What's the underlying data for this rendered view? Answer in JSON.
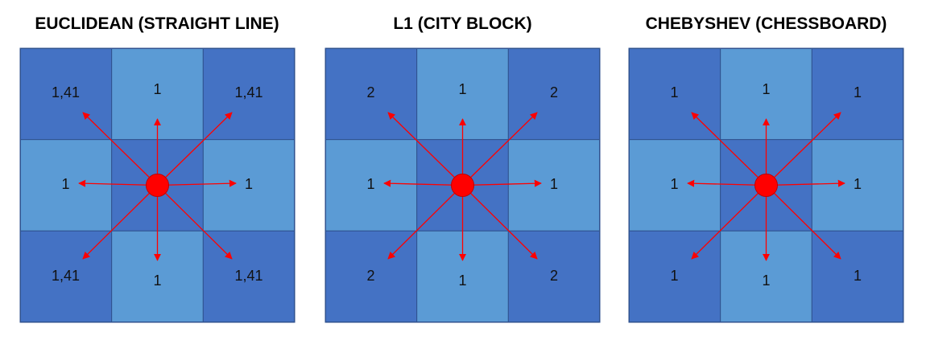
{
  "colors": {
    "dark_cell": "#4472c4",
    "light_cell": "#5b9bd5",
    "cell_border": "#2f528f",
    "arrow": "#ff0000",
    "center_dot": "#ff0000"
  },
  "panels": [
    {
      "title": "EUCLIDEAN (STRAIGHT LINE)",
      "labels": {
        "top_left": "1,41",
        "top": "1",
        "top_right": "1,41",
        "left": "1",
        "right": "1",
        "bottom_left": "1,41",
        "bottom": "1",
        "bottom_right": "1,41"
      }
    },
    {
      "title": "L1 (CITY BLOCK)",
      "labels": {
        "top_left": "2",
        "top": "1",
        "top_right": "2",
        "left": "1",
        "right": "1",
        "bottom_left": "2",
        "bottom": "1",
        "bottom_right": "2"
      }
    },
    {
      "title": "CHEBYSHEV (CHESSBOARD)",
      "labels": {
        "top_left": "1",
        "top": "1",
        "top_right": "1",
        "left": "1",
        "right": "1",
        "bottom_left": "1",
        "bottom": "1",
        "bottom_right": "1"
      }
    }
  ]
}
